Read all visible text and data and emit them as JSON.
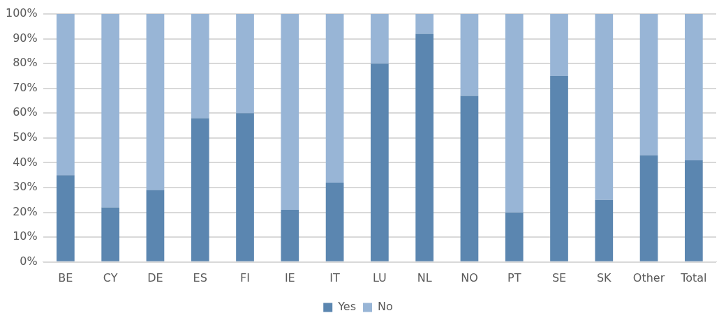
{
  "chart_data": {
    "type": "bar",
    "stacked": true,
    "categories": [
      "BE",
      "CY",
      "DE",
      "ES",
      "FI",
      "IE",
      "IT",
      "LU",
      "NL",
      "NO",
      "PT",
      "SE",
      "SK",
      "Other",
      "Total"
    ],
    "series": [
      {
        "name": "Yes",
        "color": "#5b86b0",
        "values": [
          35,
          22,
          29,
          58,
          60,
          21,
          32,
          80,
          92,
          67,
          20,
          75,
          25,
          43,
          41
        ]
      },
      {
        "name": "No",
        "color": "#98b5d6",
        "values": [
          65,
          78,
          71,
          42,
          40,
          79,
          68,
          20,
          8,
          33,
          80,
          25,
          75,
          57,
          59
        ]
      }
    ],
    "ylim": [
      0,
      100
    ],
    "yticks": [
      {
        "value": 0,
        "label": "0%"
      },
      {
        "value": 10,
        "label": "10%"
      },
      {
        "value": 20,
        "label": "20%"
      },
      {
        "value": 30,
        "label": "30%"
      },
      {
        "value": 40,
        "label": "40%"
      },
      {
        "value": 50,
        "label": "50%"
      },
      {
        "value": 60,
        "label": "60%"
      },
      {
        "value": 70,
        "label": "70%"
      },
      {
        "value": 80,
        "label": "80%"
      },
      {
        "value": 90,
        "label": "90%"
      },
      {
        "value": 100,
        "label": "100%"
      }
    ],
    "grid": "y",
    "legend": "bottom"
  }
}
